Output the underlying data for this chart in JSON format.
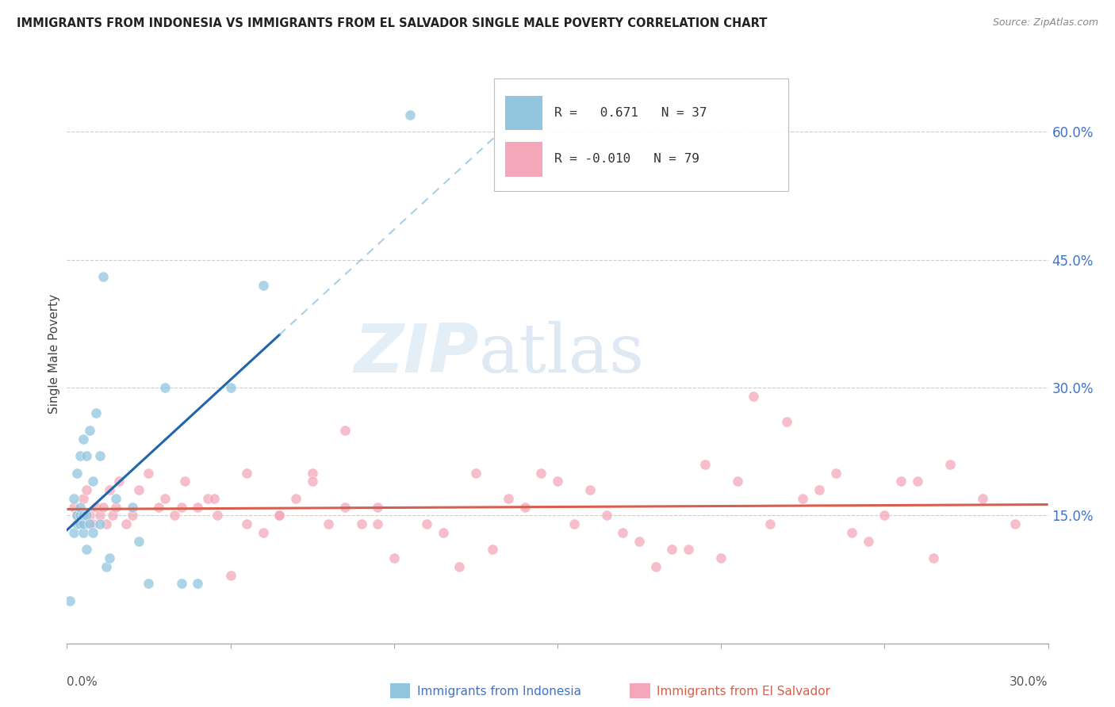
{
  "title": "IMMIGRANTS FROM INDONESIA VS IMMIGRANTS FROM EL SALVADOR SINGLE MALE POVERTY CORRELATION CHART",
  "source": "Source: ZipAtlas.com",
  "ylabel": "Single Male Poverty",
  "right_yticks": [
    0.15,
    0.3,
    0.45,
    0.6
  ],
  "right_ytick_labels": [
    "15.0%",
    "30.0%",
    "45.0%",
    "60.0%"
  ],
  "xlim": [
    0.0,
    0.3
  ],
  "ylim": [
    0.0,
    0.68
  ],
  "xtick_positions": [
    0.0,
    0.05,
    0.1,
    0.15,
    0.2,
    0.25,
    0.3
  ],
  "legend_R1": "0.671",
  "legend_N1": "37",
  "legend_R2": "-0.010",
  "legend_N2": "79",
  "blue_color": "#92c5de",
  "pink_color": "#f4a7b9",
  "blue_line_color": "#2166ac",
  "pink_line_color": "#d6604d",
  "watermark_zip": "ZIP",
  "watermark_atlas": "atlas",
  "watermark_color_zip": "#b8d4e8",
  "watermark_color_atlas": "#b8d4e8",
  "indonesia_x": [
    0.001,
    0.002,
    0.002,
    0.003,
    0.003,
    0.003,
    0.004,
    0.004,
    0.004,
    0.004,
    0.005,
    0.005,
    0.005,
    0.005,
    0.006,
    0.006,
    0.006,
    0.007,
    0.007,
    0.008,
    0.008,
    0.009,
    0.01,
    0.01,
    0.011,
    0.012,
    0.013,
    0.015,
    0.02,
    0.022,
    0.025,
    0.03,
    0.035,
    0.04,
    0.05,
    0.06,
    0.105
  ],
  "indonesia_y": [
    0.05,
    0.13,
    0.17,
    0.14,
    0.15,
    0.2,
    0.14,
    0.15,
    0.16,
    0.22,
    0.13,
    0.14,
    0.15,
    0.24,
    0.11,
    0.15,
    0.22,
    0.14,
    0.25,
    0.13,
    0.19,
    0.27,
    0.14,
    0.22,
    0.43,
    0.09,
    0.1,
    0.17,
    0.16,
    0.12,
    0.07,
    0.3,
    0.07,
    0.07,
    0.3,
    0.42,
    0.62
  ],
  "salvador_x": [
    0.002,
    0.003,
    0.004,
    0.005,
    0.006,
    0.007,
    0.008,
    0.009,
    0.01,
    0.011,
    0.012,
    0.013,
    0.014,
    0.015,
    0.016,
    0.018,
    0.02,
    0.022,
    0.025,
    0.028,
    0.03,
    0.033,
    0.036,
    0.04,
    0.043,
    0.046,
    0.05,
    0.055,
    0.06,
    0.065,
    0.07,
    0.075,
    0.08,
    0.085,
    0.09,
    0.095,
    0.1,
    0.11,
    0.12,
    0.13,
    0.14,
    0.15,
    0.16,
    0.17,
    0.18,
    0.19,
    0.2,
    0.21,
    0.22,
    0.23,
    0.24,
    0.25,
    0.26,
    0.27,
    0.28,
    0.29,
    0.035,
    0.045,
    0.055,
    0.065,
    0.075,
    0.085,
    0.095,
    0.115,
    0.125,
    0.135,
    0.145,
    0.155,
    0.165,
    0.175,
    0.185,
    0.195,
    0.205,
    0.215,
    0.225,
    0.235,
    0.245,
    0.255,
    0.265
  ],
  "salvador_y": [
    0.16,
    0.15,
    0.14,
    0.17,
    0.18,
    0.15,
    0.14,
    0.16,
    0.15,
    0.16,
    0.14,
    0.18,
    0.15,
    0.16,
    0.19,
    0.14,
    0.15,
    0.18,
    0.2,
    0.16,
    0.17,
    0.15,
    0.19,
    0.16,
    0.17,
    0.15,
    0.08,
    0.14,
    0.13,
    0.15,
    0.17,
    0.2,
    0.14,
    0.25,
    0.14,
    0.16,
    0.1,
    0.14,
    0.09,
    0.11,
    0.16,
    0.19,
    0.18,
    0.13,
    0.09,
    0.11,
    0.1,
    0.29,
    0.26,
    0.18,
    0.13,
    0.15,
    0.19,
    0.21,
    0.17,
    0.14,
    0.16,
    0.17,
    0.2,
    0.15,
    0.19,
    0.16,
    0.14,
    0.13,
    0.2,
    0.17,
    0.2,
    0.14,
    0.15,
    0.12,
    0.11,
    0.21,
    0.19,
    0.14,
    0.17,
    0.2,
    0.12,
    0.19,
    0.1
  ]
}
